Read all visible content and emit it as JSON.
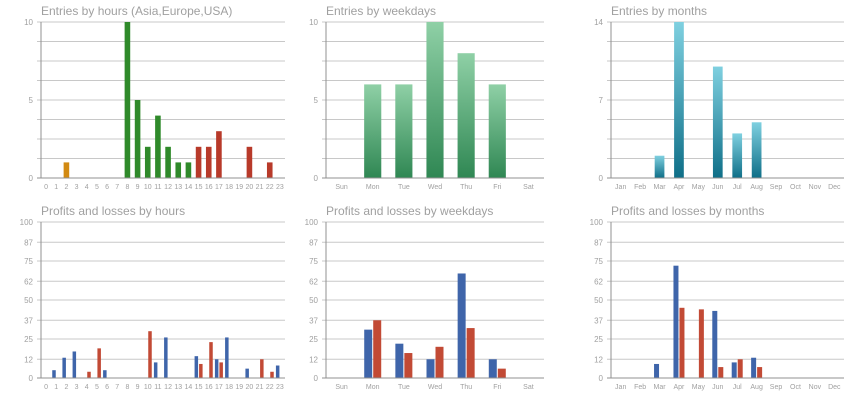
{
  "colors": {
    "orange": "#d28a12",
    "green": "#2f8a2a",
    "red": "#b83a2a",
    "green_light": "#8fd0a6",
    "green_dark": "#2f8753",
    "teal_light": "#7fd0e0",
    "teal_dark": "#0f6f88",
    "blue": "#3f65aa",
    "redbar": "#c24a35",
    "grid": "#c8c8c8",
    "axis": "#909090",
    "text": "#a0a0a0"
  },
  "chart_data": [
    {
      "type": "bar",
      "title": "Entries by hours (Asia,Europe,USA)",
      "categories": [
        "0",
        "1",
        "2",
        "3",
        "4",
        "5",
        "6",
        "7",
        "8",
        "9",
        "10",
        "11",
        "12",
        "13",
        "14",
        "15",
        "16",
        "17",
        "18",
        "19",
        "20",
        "21",
        "22",
        "23"
      ],
      "values": [
        0,
        0,
        1,
        0,
        0,
        0,
        0,
        0,
        10,
        5,
        2,
        4,
        2,
        1,
        1,
        2,
        2,
        3,
        0,
        0,
        2,
        0,
        1,
        0
      ],
      "bar_colors": [
        "orange",
        "orange",
        "orange",
        "green",
        "green",
        "green",
        "green",
        "green",
        "green",
        "green",
        "green",
        "green",
        "green",
        "green",
        "green",
        "red",
        "red",
        "red",
        "red",
        "red",
        "red",
        "red",
        "red",
        "red"
      ],
      "ylim": [
        0,
        10
      ],
      "yticks": [
        0,
        5,
        10
      ],
      "grid": true,
      "style": "flat"
    },
    {
      "type": "bar",
      "title": "Entries by weekdays",
      "categories": [
        "Sun",
        "Mon",
        "Tue",
        "Wed",
        "Thu",
        "Fri",
        "Sat"
      ],
      "values": [
        0,
        6,
        6,
        10,
        8,
        6,
        0
      ],
      "ylim": [
        0,
        10
      ],
      "yticks": [
        0,
        5,
        10
      ],
      "grid": true,
      "style": "gradient",
      "gradient": [
        "green_light",
        "green_dark"
      ]
    },
    {
      "type": "bar",
      "title": "Entries by months",
      "categories": [
        "Jan",
        "Feb",
        "Mar",
        "Apr",
        "May",
        "Jun",
        "Jul",
        "Aug",
        "Sep",
        "Oct",
        "Nov",
        "Dec"
      ],
      "values": [
        0,
        0,
        2,
        14,
        0,
        10,
        4,
        5,
        0,
        0,
        0,
        0
      ],
      "ylim": [
        0,
        14
      ],
      "yticks": [
        0,
        7,
        14
      ],
      "grid": true,
      "style": "gradient",
      "gradient": [
        "teal_light",
        "teal_dark"
      ]
    },
    {
      "type": "bar",
      "title": "Profits and losses by hours",
      "categories": [
        "0",
        "1",
        "2",
        "3",
        "4",
        "5",
        "6",
        "7",
        "8",
        "9",
        "10",
        "11",
        "12",
        "13",
        "14",
        "15",
        "16",
        "17",
        "18",
        "19",
        "20",
        "21",
        "22",
        "23"
      ],
      "series": [
        {
          "color": "blue",
          "values": [
            0,
            5,
            13,
            17,
            0,
            0,
            5,
            0,
            0,
            0,
            0,
            10,
            26,
            0,
            0,
            14,
            0,
            12,
            26,
            0,
            6,
            0,
            0,
            8
          ]
        },
        {
          "color": "redbar",
          "values": [
            0,
            0,
            0,
            0,
            4,
            19,
            0,
            0,
            0,
            0,
            30,
            0,
            0,
            0,
            0,
            9,
            23,
            10,
            0,
            0,
            0,
            12,
            4,
            0
          ]
        }
      ],
      "ylim": [
        0,
        100
      ],
      "yticks": [
        0,
        12,
        25,
        37,
        50,
        62,
        75,
        87,
        100
      ],
      "grid": true,
      "style": "pair"
    },
    {
      "type": "bar",
      "title": "Profits and losses by weekdays",
      "categories": [
        "Sun",
        "Mon",
        "Tue",
        "Wed",
        "Thu",
        "Fri",
        "Sat"
      ],
      "series": [
        {
          "color": "blue",
          "values": [
            0,
            31,
            22,
            12,
            67,
            12,
            0
          ]
        },
        {
          "color": "redbar",
          "values": [
            0,
            37,
            16,
            20,
            32,
            6,
            0
          ]
        }
      ],
      "ylim": [
        0,
        100
      ],
      "yticks": [
        0,
        12,
        25,
        37,
        50,
        62,
        75,
        87,
        100
      ],
      "grid": true,
      "style": "pair"
    },
    {
      "type": "bar",
      "title": "Profits and losses by months",
      "categories": [
        "Jan",
        "Feb",
        "Mar",
        "Apr",
        "May",
        "Jun",
        "Jul",
        "Aug",
        "Sep",
        "Oct",
        "Nov",
        "Dec"
      ],
      "series": [
        {
          "color": "blue",
          "values": [
            0,
            0,
            9,
            72,
            0,
            43,
            10,
            13,
            0,
            0,
            0,
            0
          ]
        },
        {
          "color": "redbar",
          "values": [
            0,
            0,
            0,
            45,
            44,
            7,
            12,
            7,
            0,
            0,
            0,
            0
          ]
        }
      ],
      "ylim": [
        0,
        100
      ],
      "yticks": [
        0,
        12,
        25,
        37,
        50,
        62,
        75,
        87,
        100
      ],
      "grid": true,
      "style": "pair"
    }
  ]
}
